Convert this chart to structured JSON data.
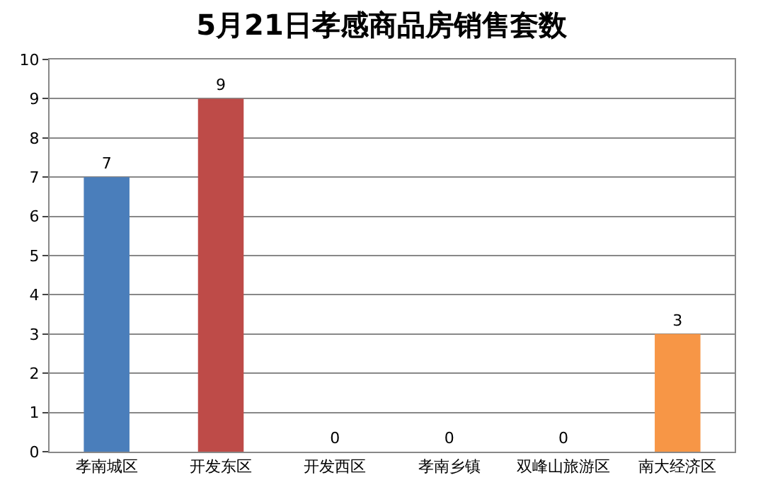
{
  "chart_data": {
    "type": "bar",
    "title": "5月21日孝感商品房销售套数",
    "categories": [
      "孝南城区",
      "开发东区",
      "开发西区",
      "孝南乡镇",
      "双峰山旅游区",
      "南大经济区"
    ],
    "values": [
      7,
      9,
      0,
      0,
      0,
      3
    ],
    "colors": [
      "#4a7ebb",
      "#be4b48",
      "#9bbb59",
      "#8064a2",
      "#4bacc6",
      "#f79646"
    ],
    "ylim": [
      0,
      10
    ],
    "yticks": [
      0,
      1,
      2,
      3,
      4,
      5,
      6,
      7,
      8,
      9,
      10
    ],
    "grid": "y",
    "data_labels": true
  }
}
